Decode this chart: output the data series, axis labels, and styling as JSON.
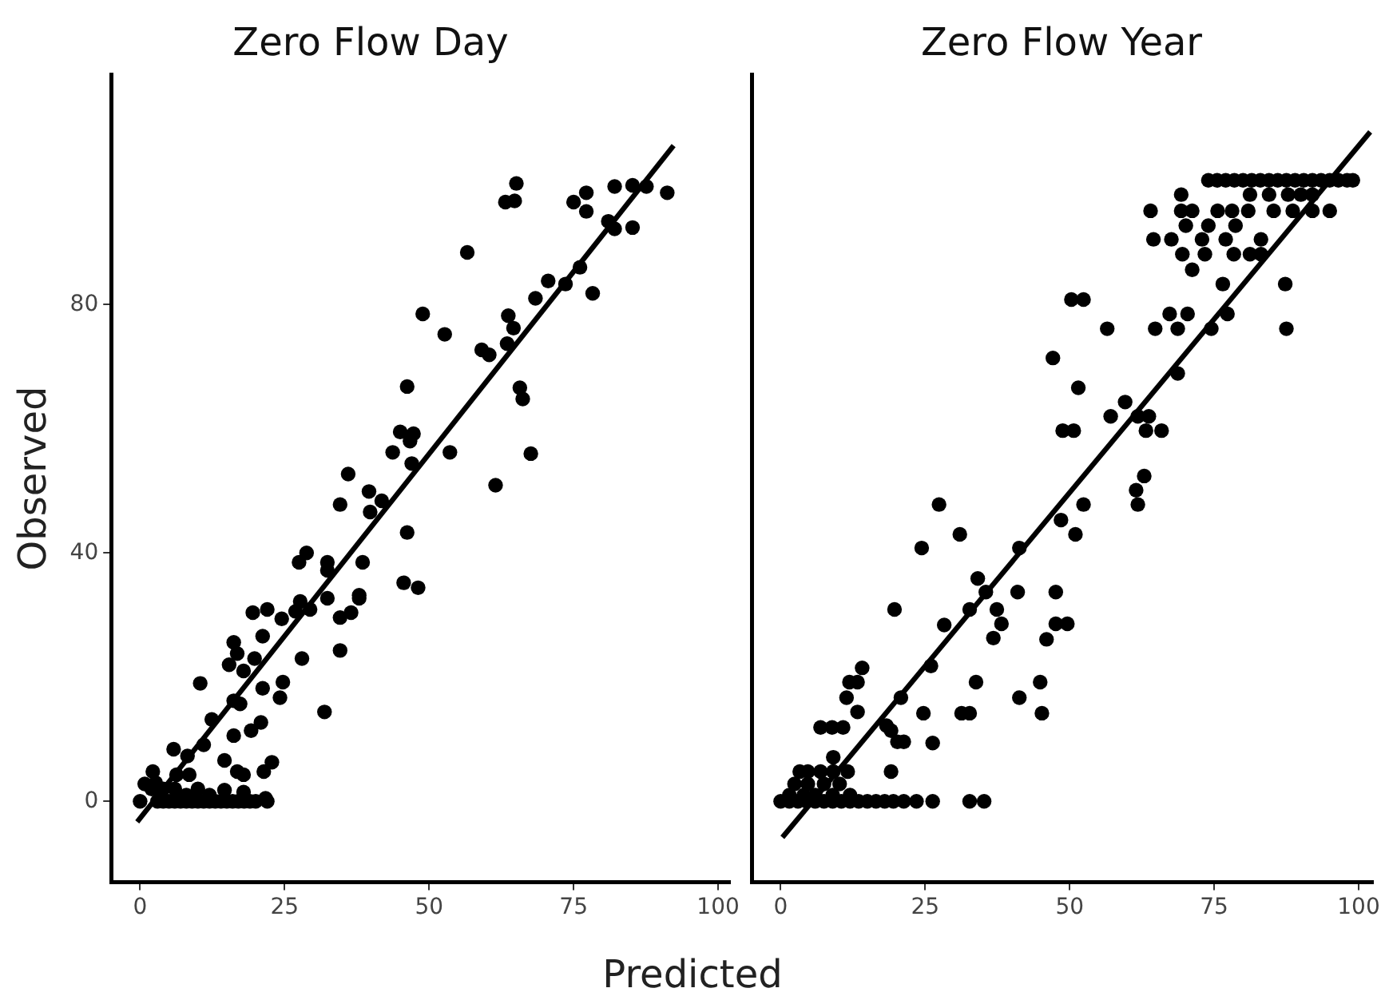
{
  "chart_data": [
    {
      "type": "scatter",
      "title": "Zero Flow Day",
      "xlabel": "Predicted",
      "ylabel": "Observed",
      "xlim": [
        -5,
        102
      ],
      "ylim": [
        -13,
        117
      ],
      "xticks": [
        0,
        25,
        50,
        75,
        100
      ],
      "yticks": [
        0,
        40,
        80
      ],
      "grid": false,
      "legend": false,
      "series": [
        {
          "color": "#000000",
          "x": [
            65.1,
            63.2,
            64.8,
            56.6,
            75,
            77.2,
            77.2,
            82.1,
            85.2,
            87.6,
            91.2,
            81,
            82.1,
            85.2,
            76.1,
            73.6,
            70.6,
            78.3,
            68.4,
            48.9,
            52.7,
            63.7,
            64.6,
            59.1,
            60.4,
            63.5,
            65.7,
            66.2,
            67.6,
            61.5,
            46.2,
            45,
            47.3,
            46.7,
            43.7,
            53.6,
            47,
            36,
            39.6,
            41.8,
            34.6,
            39.8,
            46.2,
            28.8,
            27.5,
            32.4,
            38.5,
            32.4,
            45.6,
            48.1,
            37.9,
            19.5,
            22,
            24.5,
            26.9,
            29.4,
            27.7,
            32.4,
            34.6,
            36.5,
            37.9,
            16.2,
            16.8,
            15.4,
            17.9,
            19.8,
            21.2,
            28,
            34.6,
            10.4,
            21.2,
            24.7,
            24.2,
            17.3,
            16.2,
            31.9,
            12.4,
            19.2,
            20.9,
            16.2,
            11,
            5.8,
            8.2,
            14.6,
            16.8,
            17.9,
            22.8,
            21.4,
            2.2,
            2.7,
            0.8,
            6.3,
            8.5,
            21.7,
            14.6,
            17.9,
            0,
            3,
            4,
            5,
            6,
            7,
            8,
            9,
            10,
            11,
            12,
            13,
            14,
            15,
            16,
            17,
            18,
            19,
            20,
            22,
            8,
            12,
            2,
            4,
            6,
            10
          ],
          "values": [
            99.5,
            96.5,
            96.7,
            88.4,
            96.5,
            98,
            95,
            99,
            99.2,
            99,
            98,
            93.4,
            92.2,
            92.4,
            86,
            83.3,
            83.8,
            81.8,
            81,
            78.5,
            75.2,
            78.2,
            76.2,
            72.7,
            71.9,
            73.7,
            66.6,
            64.8,
            56,
            50.9,
            66.8,
            59.5,
            59.2,
            58,
            56.2,
            56.2,
            54.4,
            52.7,
            49.9,
            48.4,
            47.8,
            46.6,
            43.3,
            40,
            38.5,
            38.5,
            38.5,
            37.2,
            35.2,
            34.4,
            33.2,
            30.4,
            30.9,
            29.4,
            30.6,
            30.9,
            32.2,
            32.7,
            29.6,
            30.4,
            32.7,
            25.6,
            23.8,
            22,
            21,
            23,
            26.6,
            23,
            24.3,
            19,
            18.2,
            19.2,
            16.7,
            15.7,
            16.2,
            14.4,
            13.2,
            11.4,
            12.7,
            10.6,
            9.1,
            8.4,
            7.3,
            6.6,
            4.8,
            4.3,
            6.3,
            4.8,
            4.8,
            3,
            2.8,
            4.3,
            4.3,
            0.5,
            1.8,
            1.5,
            0,
            0,
            0,
            0,
            0,
            0,
            0,
            0,
            0,
            0,
            0,
            0,
            0,
            0,
            0,
            0,
            0,
            0,
            0,
            0,
            1,
            1,
            2,
            2,
            2,
            2
          ],
          "marker": "circle"
        },
        {
          "type": "line",
          "color": "#000000",
          "marker": "none",
          "x": [
            -0.5,
            92.3
          ],
          "values": [
            -3.3,
            105.6
          ]
        }
      ]
    },
    {
      "type": "scatter",
      "title": "Zero Flow Year",
      "xlim": [
        -5,
        102.5
      ],
      "ylim": [
        -13,
        117
      ],
      "xticks": [
        0,
        25,
        50,
        75,
        100
      ],
      "yticks": [
        0,
        40,
        80
      ],
      "tick_labels": "x",
      "grid": false,
      "legend": false,
      "series": [
        {
          "color": "#000000",
          "x": [
            74,
            75.5,
            77,
            78.5,
            80,
            81.5,
            83,
            84.5,
            86,
            87.5,
            89,
            90.5,
            92,
            93.5,
            95,
            96.5,
            98,
            99,
            69.3,
            81.2,
            84.5,
            87.8,
            90,
            92,
            64,
            69.3,
            71.2,
            75.6,
            78.1,
            80.9,
            85.3,
            88.6,
            92,
            95,
            70.1,
            74,
            78.7,
            64.5,
            67.6,
            72.9,
            77,
            83.1,
            69.5,
            73.4,
            78.4,
            81.2,
            83.1,
            71.2,
            87.3,
            76.5,
            50.3,
            52.4,
            67.3,
            70.4,
            77.3,
            56.5,
            64.8,
            68.7,
            74.5,
            87.5,
            47.1,
            68.7,
            51.5,
            59.6,
            57.1,
            61.8,
            63.7,
            48.8,
            50.7,
            63.2,
            65.9,
            62.9,
            61.5,
            61.8,
            27.4,
            52.4,
            48.5,
            51,
            31,
            24.4,
            41.3,
            34.1,
            35.5,
            41,
            47.6,
            19.7,
            28.3,
            32.7,
            37.4,
            38.2,
            36.8,
            47.6,
            49.6,
            46,
            26,
            14.1,
            11.9,
            13.3,
            11.4,
            20.8,
            13.3,
            33.8,
            41.3,
            44.9,
            24.7,
            31.3,
            32.7,
            45.2,
            6.9,
            8.9,
            10.8,
            18.3,
            19.1,
            20.2,
            21.3,
            26.3,
            9.1,
            3.3,
            4.7,
            6.9,
            9.1,
            11.6,
            19.1,
            2.4,
            4.7,
            7.5,
            10.2,
            1.5,
            4,
            6,
            9,
            12,
            0,
            1.5,
            3,
            4.5,
            6,
            7.5,
            9,
            10.5,
            12,
            13.5,
            15,
            16.5,
            18,
            19.5,
            21.3,
            23.5,
            26.3,
            32.7,
            35.2
          ],
          "values": [
            100,
            100,
            100,
            100,
            100,
            100,
            100,
            100,
            100,
            100,
            100,
            100,
            100,
            100,
            100,
            100,
            100,
            100,
            97.7,
            97.7,
            97.7,
            97.7,
            97.7,
            97.7,
            95.1,
            95.1,
            95.1,
            95.1,
            95.1,
            95.1,
            95.1,
            95.1,
            95.1,
            95.1,
            92.7,
            92.7,
            92.7,
            90.5,
            90.5,
            90.5,
            90.5,
            90.5,
            88.1,
            88.1,
            88.1,
            88.1,
            88.1,
            85.6,
            83.3,
            83.3,
            80.8,
            80.8,
            78.5,
            78.5,
            78.5,
            76.1,
            76.1,
            76.1,
            76.1,
            76.1,
            71.4,
            68.9,
            66.6,
            64.3,
            62,
            62,
            62,
            59.7,
            59.7,
            59.7,
            59.7,
            52.4,
            50.1,
            47.8,
            47.8,
            47.8,
            45.3,
            43,
            43,
            40.8,
            40.8,
            35.9,
            33.7,
            33.7,
            33.7,
            30.9,
            28.4,
            30.9,
            30.9,
            28.6,
            26.3,
            28.6,
            28.6,
            26.1,
            21.8,
            21.5,
            19.2,
            19.2,
            16.7,
            16.7,
            14.4,
            19.2,
            16.7,
            19.2,
            14.2,
            14.2,
            14.2,
            14.2,
            11.9,
            11.9,
            11.9,
            12.2,
            11.4,
            9.6,
            9.6,
            9.4,
            7.1,
            4.8,
            4.8,
            4.8,
            4.8,
            4.8,
            4.8,
            2.8,
            2.8,
            2.8,
            2.8,
            1,
            1,
            1,
            1,
            1,
            0,
            0,
            0,
            0,
            0,
            0,
            0,
            0,
            0,
            0,
            0,
            0,
            0,
            0,
            0,
            0,
            0,
            0,
            0
          ],
          "marker": "circle"
        },
        {
          "type": "line",
          "color": "#000000",
          "marker": "none",
          "x": [
            0.3,
            102
          ],
          "values": [
            -5.8,
            107.8
          ]
        }
      ]
    }
  ]
}
